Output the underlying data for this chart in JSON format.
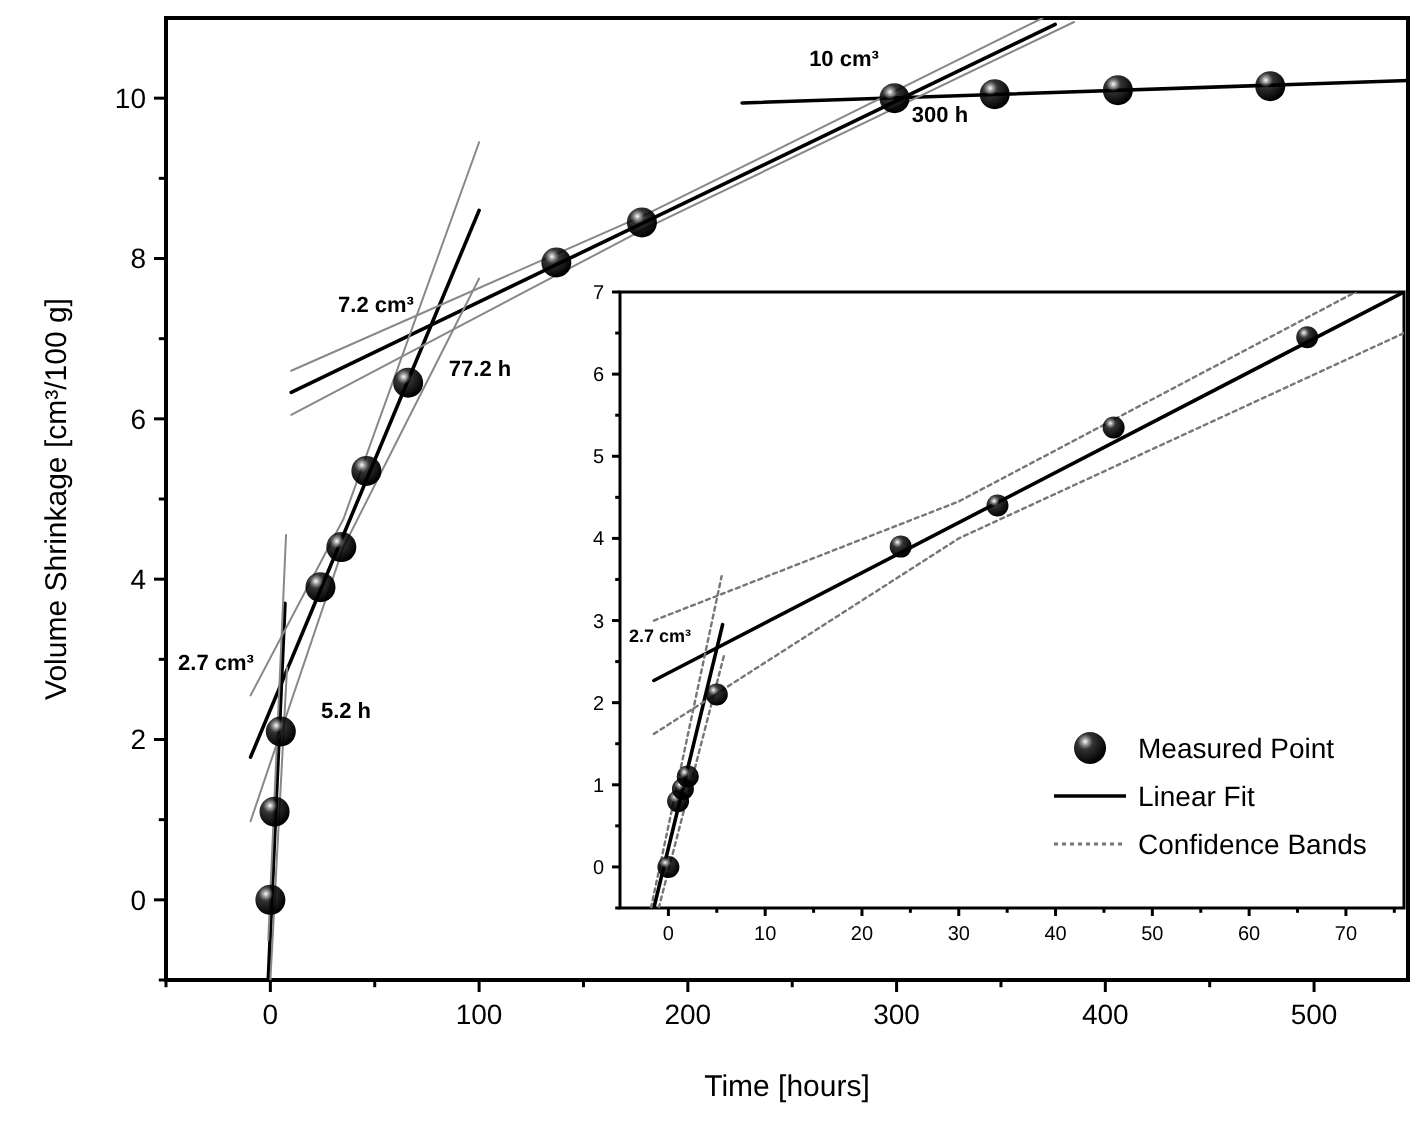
{
  "chart_data": [
    {
      "type": "scatter",
      "xlabel": "Time [hours]",
      "ylabel": "Volume Shrinkage [cm³/100 g]",
      "xlim": [
        -50,
        545
      ],
      "ylim": [
        -1,
        11
      ],
      "xticks": [
        {
          "value": -50,
          "label": null
        },
        0,
        {
          "value": 50,
          "label": null
        },
        100,
        {
          "value": 150,
          "label": null
        },
        200,
        {
          "value": 250,
          "label": null
        },
        300,
        {
          "value": 350,
          "label": null
        },
        400,
        {
          "value": 450,
          "label": null
        },
        500
      ],
      "yticks": [
        {
          "value": -1,
          "label": null
        },
        0,
        {
          "value": 1,
          "label": null
        },
        2,
        {
          "value": 3,
          "label": null
        },
        4,
        {
          "value": 5,
          "label": null
        },
        6,
        {
          "value": 7,
          "label": null
        },
        8,
        {
          "value": 9,
          "label": null
        },
        10
      ],
      "series": [
        {
          "marker": "circle",
          "color": "#000000",
          "x": [
            0,
            2,
            5,
            24,
            34,
            46,
            66,
            137,
            178,
            299,
            347,
            406,
            479
          ],
          "values": [
            0,
            1.1,
            2.1,
            3.9,
            4.4,
            5.35,
            6.45,
            7.95,
            8.45,
            10.0,
            10.05,
            10.1,
            10.15
          ]
        },
        {
          "type": "line",
          "color": "#000000",
          "line_style": "solid",
          "x": [
            -1,
            7
          ],
          "values": [
            -1,
            3.7
          ]
        },
        {
          "type": "line",
          "color": "#000000",
          "line_style": "solid",
          "x": [
            -9.5,
            100
          ],
          "values": [
            1.78,
            8.6
          ]
        },
        {
          "type": "line",
          "color": "#000000",
          "line_style": "solid",
          "x": [
            10,
            376
          ],
          "values": [
            6.33,
            10.92
          ]
        },
        {
          "type": "line",
          "color": "#000000",
          "line_style": "solid",
          "x": [
            226,
            545
          ],
          "values": [
            9.94,
            10.22
          ]
        },
        {
          "type": "line",
          "color": "#888888",
          "line_style": "solid",
          "x": [
            -1,
            7.5
          ],
          "values": [
            -0.5,
            4.55
          ]
        },
        {
          "type": "line",
          "color": "#888888",
          "line_style": "solid",
          "x": [
            0,
            8
          ],
          "values": [
            -1,
            2.9
          ]
        },
        {
          "type": "line",
          "color": "#888888",
          "line_style": "solid",
          "x": [
            -9.5,
            35,
            100
          ],
          "values": [
            2.55,
            4.75,
            9.45
          ]
        },
        {
          "type": "line",
          "color": "#888888",
          "line_style": "solid",
          "x": [
            -9.5,
            35,
            100
          ],
          "values": [
            0.98,
            4.4,
            7.75
          ]
        },
        {
          "type": "line",
          "color": "#888888",
          "line_style": "solid",
          "x": [
            10,
            180,
            370
          ],
          "values": [
            6.6,
            8.55,
            11
          ]
        },
        {
          "type": "line",
          "color": "#888888",
          "line_style": "solid",
          "x": [
            10,
            180,
            385
          ],
          "values": [
            6.05,
            8.38,
            10.95
          ]
        }
      ],
      "annotations": [
        "10 cm³",
        "300 h",
        "7.2 cm³",
        "77.2 h",
        "2.7 cm³",
        "5.2 h"
      ]
    },
    {
      "type": "scatter",
      "legend": "bottom right",
      "xlim": [
        -5,
        76
      ],
      "ylim": [
        -0.5,
        7
      ],
      "xticks": [
        0,
        {
          "value": 5,
          "label": null
        },
        10,
        {
          "value": 15,
          "label": null
        },
        20,
        {
          "value": 25,
          "label": null
        },
        30,
        {
          "value": 35,
          "label": null
        },
        40,
        {
          "value": 45,
          "label": null
        },
        50,
        {
          "value": 55,
          "label": null
        },
        60,
        {
          "value": 65,
          "label": null
        },
        70,
        {
          "value": 75,
          "label": null
        }
      ],
      "yticks": [
        {
          "value": -0.5,
          "label": null
        },
        0,
        {
          "value": 0.5,
          "label": null
        },
        1,
        {
          "value": 1.5,
          "label": null
        },
        2,
        {
          "value": 2.5,
          "label": null
        },
        3,
        {
          "value": 3.5,
          "label": null
        },
        4,
        {
          "value": 4.5,
          "label": null
        },
        5,
        {
          "value": 5.5,
          "label": null
        },
        6,
        {
          "value": 6.5,
          "label": null
        },
        7
      ],
      "series": [
        {
          "marker": "circle",
          "name": "Measured Point",
          "color": "#000000",
          "x": [
            0,
            1,
            1.5,
            2,
            5,
            24,
            34,
            46,
            66
          ],
          "values": [
            0,
            0.8,
            0.95,
            1.1,
            2.1,
            3.9,
            4.4,
            5.35,
            6.45
          ]
        },
        {
          "type": "line",
          "name": "Linear Fit",
          "color": "#000000",
          "line_style": "solid",
          "x": [
            -1.5,
            5.6
          ],
          "values": [
            -0.5,
            2.95
          ]
        },
        {
          "type": "line",
          "color": "#000000",
          "line_style": "solid",
          "x": [
            -1.5,
            76
          ],
          "values": [
            2.27,
            7.0
          ]
        },
        {
          "type": "line",
          "name": "Confidence Bands",
          "color": "#777777",
          "line_style": "dotted",
          "x": [
            -1.8,
            5.5
          ],
          "values": [
            -0.5,
            3.54
          ]
        },
        {
          "type": "line",
          "color": "#777777",
          "line_style": "dotted",
          "x": [
            -1,
            5.8
          ],
          "values": [
            -0.5,
            2.6
          ]
        },
        {
          "type": "line",
          "color": "#777777",
          "line_style": "dotted",
          "x": [
            -1.5,
            30,
            71
          ],
          "values": [
            3.0,
            4.45,
            7.0
          ]
        },
        {
          "type": "line",
          "color": "#777777",
          "line_style": "dotted",
          "x": [
            -1.5,
            30,
            76
          ],
          "values": [
            1.62,
            4.0,
            6.5
          ]
        }
      ],
      "annotations": [
        "2.7 cm³"
      ]
    }
  ]
}
